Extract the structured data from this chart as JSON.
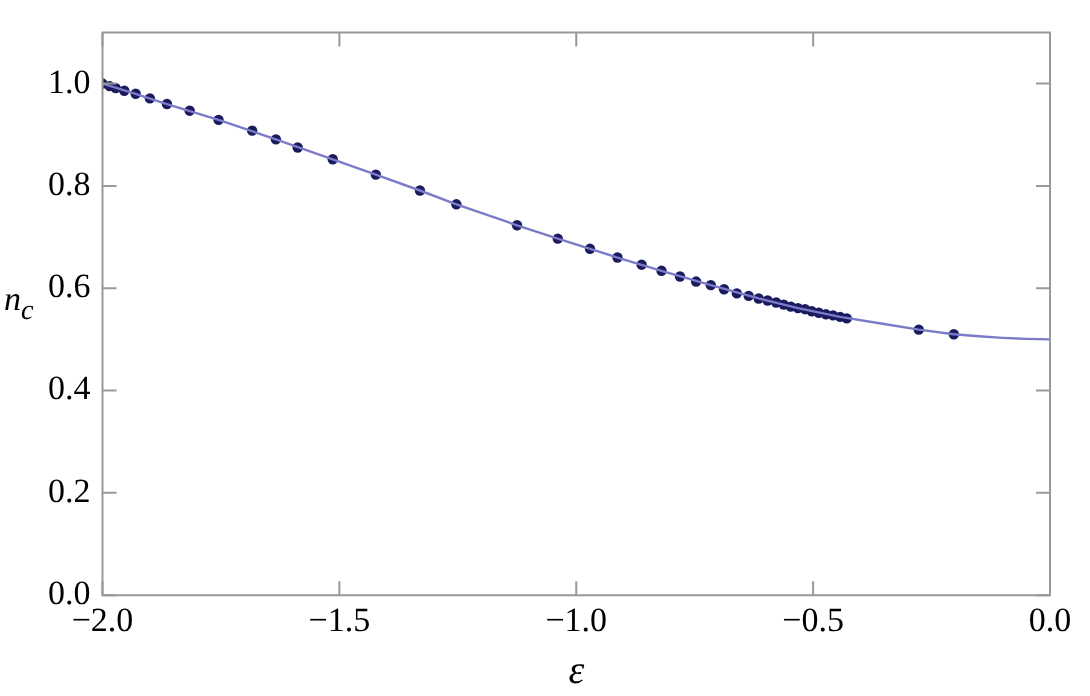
{
  "chart_data": {
    "type": "scatter",
    "xlabel": "ε",
    "ylabel": "n$_{c}$",
    "xlim": [
      -2,
      0
    ],
    "ylim": [
      0,
      1.1
    ],
    "xticks": [
      {
        "value": -2,
        "label": "−2.0"
      },
      {
        "value": -1.5,
        "label": "−1.5"
      },
      {
        "value": -1,
        "label": "−1.0"
      },
      {
        "value": -0.5,
        "label": "−0.5"
      },
      {
        "value": 0,
        "label": "0.0"
      }
    ],
    "yticks": [
      {
        "value": 0,
        "label": "0.0"
      },
      {
        "value": 0.2,
        "label": "0.2"
      },
      {
        "value": 0.4,
        "label": "0.4"
      },
      {
        "value": 0.6,
        "label": "0.6"
      },
      {
        "value": 0.8,
        "label": "0.8"
      },
      {
        "value": 1,
        "label": "1.0"
      }
    ],
    "grid": false,
    "legend": false,
    "series": [
      {
        "type": "line",
        "marker": "none",
        "color": "#7b7bc8",
        "x": [
          -2.0,
          -1.93,
          -1.864,
          -1.755,
          -1.634,
          -1.514,
          -1.423,
          -1.33,
          -1.253,
          -1.125,
          -1.039,
          -0.913,
          -0.82,
          -0.716,
          -0.615,
          -0.532,
          -0.443,
          -0.35,
          -0.277,
          -0.203,
          -0.15,
          -0.1,
          -0.05,
          0
        ],
        "values": [
          1.0,
          0.98,
          0.96,
          0.929,
          0.891,
          0.852,
          0.822,
          0.791,
          0.764,
          0.723,
          0.697,
          0.66,
          0.634,
          0.606,
          0.58,
          0.561,
          0.544,
          0.53,
          0.519,
          0.51,
          0.506,
          0.503,
          0.501,
          0.5
        ]
      },
      {
        "marker": "circle",
        "color": "#1a1a5e",
        "x": [
          -2.0,
          -1.985,
          -1.972,
          -1.954,
          -1.93,
          -1.9,
          -1.864,
          -1.816,
          -1.755,
          -1.684,
          -1.634,
          -1.588,
          -1.514,
          -1.423,
          -1.33,
          -1.253,
          -1.125,
          -1.039,
          -0.971,
          -0.913,
          -0.862,
          -0.82,
          -0.781,
          -0.747,
          -0.716,
          -0.688,
          -0.661,
          -0.636,
          -0.615,
          -0.596,
          -0.578,
          -0.562,
          -0.547,
          -0.532,
          -0.517,
          -0.503,
          -0.488,
          -0.473,
          -0.458,
          -0.443,
          -0.429,
          -0.277,
          -0.203
        ],
        "values": [
          1.0,
          0.995,
          0.991,
          0.986,
          0.98,
          0.971,
          0.96,
          0.947,
          0.929,
          0.908,
          0.891,
          0.875,
          0.852,
          0.822,
          0.791,
          0.764,
          0.723,
          0.697,
          0.677,
          0.66,
          0.646,
          0.634,
          0.623,
          0.613,
          0.606,
          0.598,
          0.59,
          0.585,
          0.58,
          0.576,
          0.572,
          0.568,
          0.564,
          0.561,
          0.559,
          0.555,
          0.552,
          0.549,
          0.547,
          0.544,
          0.541,
          0.519,
          0.51
        ]
      }
    ]
  }
}
